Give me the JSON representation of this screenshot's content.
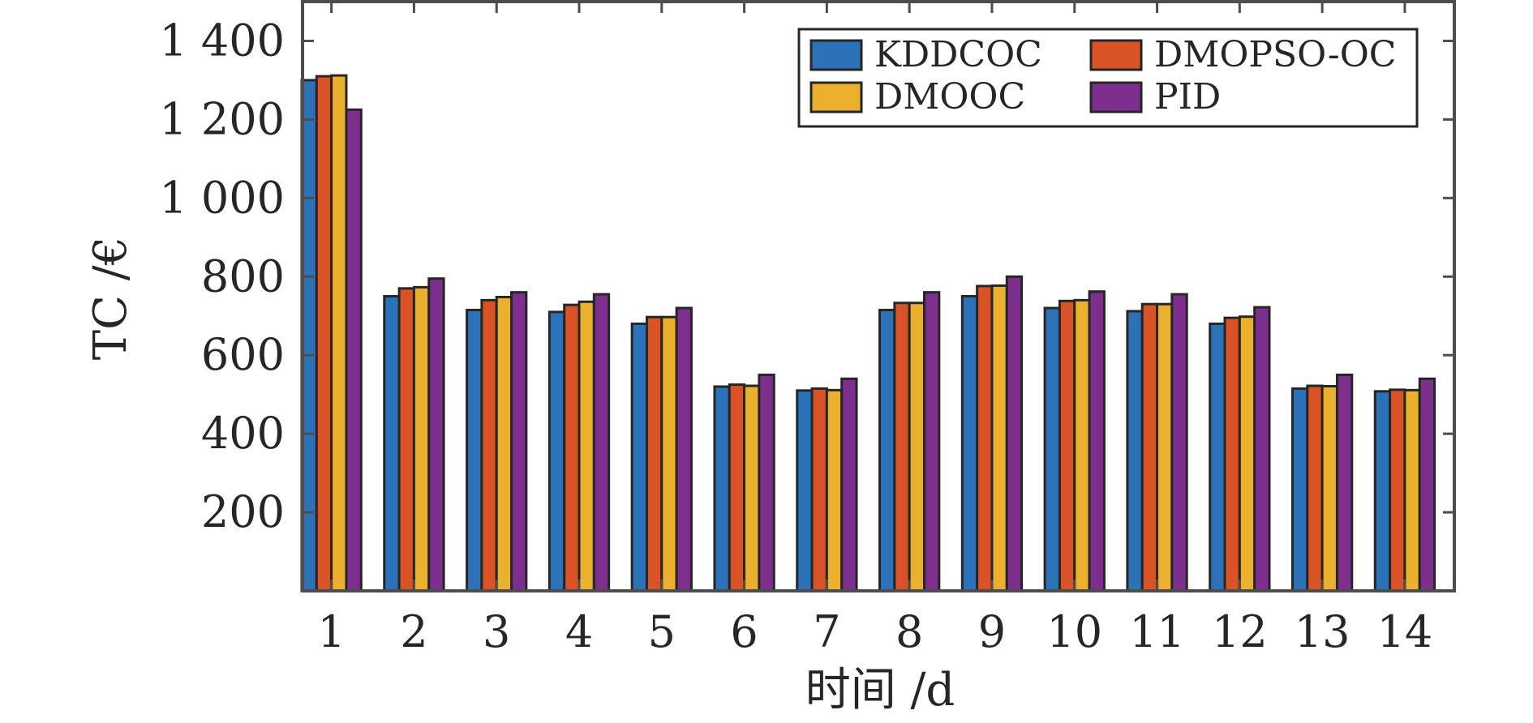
{
  "chart_data": {
    "type": "bar",
    "title": "",
    "xlabel": "时间 /d",
    "ylabel": "TC /€",
    "ylim": [
      0,
      1500
    ],
    "yticks": [
      200,
      400,
      600,
      800,
      1000,
      1200,
      1400
    ],
    "ytick_labels": [
      "200",
      "400",
      "600",
      "800",
      "1 000",
      "1 200",
      "1 400"
    ],
    "grid": false,
    "legend_position": "top-right",
    "categories": [
      "1",
      "2",
      "3",
      "4",
      "5",
      "6",
      "7",
      "8",
      "9",
      "10",
      "11",
      "12",
      "13",
      "14"
    ],
    "series": [
      {
        "name": "KDDCOC",
        "color": "#2b72b8",
        "values": [
          1300,
          750,
          715,
          710,
          680,
          520,
          510,
          715,
          750,
          720,
          712,
          680,
          515,
          508
        ]
      },
      {
        "name": "DMOPSO-OC",
        "color": "#d95326",
        "values": [
          1310,
          770,
          740,
          728,
          697,
          525,
          515,
          733,
          776,
          738,
          730,
          695,
          522,
          512
        ]
      },
      {
        "name": "DMOOC",
        "color": "#ecb02f",
        "values": [
          1312,
          773,
          748,
          736,
          697,
          522,
          511,
          733,
          777,
          740,
          730,
          698,
          521,
          511
        ]
      },
      {
        "name": "PID",
        "color": "#7e2f8e",
        "values": [
          1225,
          795,
          760,
          755,
          720,
          550,
          540,
          760,
          800,
          762,
          755,
          722,
          550,
          540
        ]
      }
    ]
  }
}
